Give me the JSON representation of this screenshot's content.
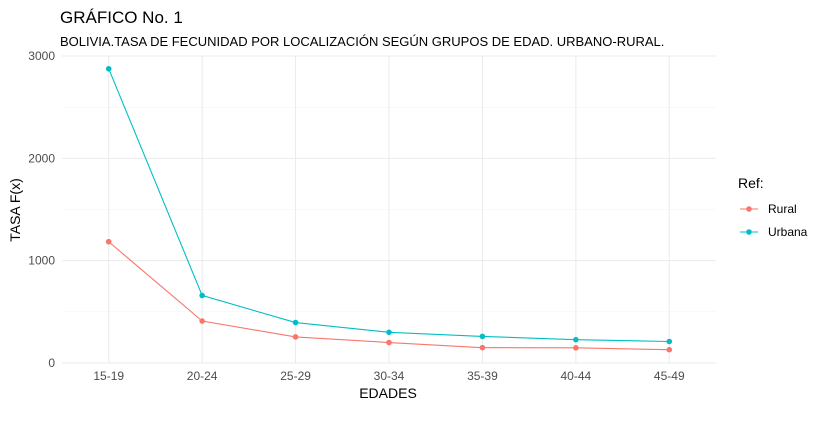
{
  "chart_data": {
    "type": "line",
    "title": "GRÁFICO No. 1",
    "subtitle": "BOLIVIA.TASA DE FECUNIDAD POR LOCALIZACIÓN SEGÚN GRUPOS DE EDAD. URBANO-RURAL.",
    "xlabel": "EDADES",
    "ylabel": "TASA F(x)",
    "categories": [
      "15-19",
      "20-24",
      "25-29",
      "30-34",
      "35-39",
      "40-44",
      "45-49"
    ],
    "y_ticks": [
      0,
      1000,
      2000,
      3000
    ],
    "ylim": [
      0,
      3000
    ],
    "grid": true,
    "legend": {
      "title": "Ref:",
      "position": "right"
    },
    "series": [
      {
        "name": "Rural",
        "color": "#f8766d",
        "values": [
          1185,
          410,
          255,
          200,
          150,
          148,
          130
        ]
      },
      {
        "name": "Urbana",
        "color": "#00bfc4",
        "values": [
          2875,
          660,
          395,
          300,
          260,
          228,
          210
        ]
      }
    ]
  }
}
